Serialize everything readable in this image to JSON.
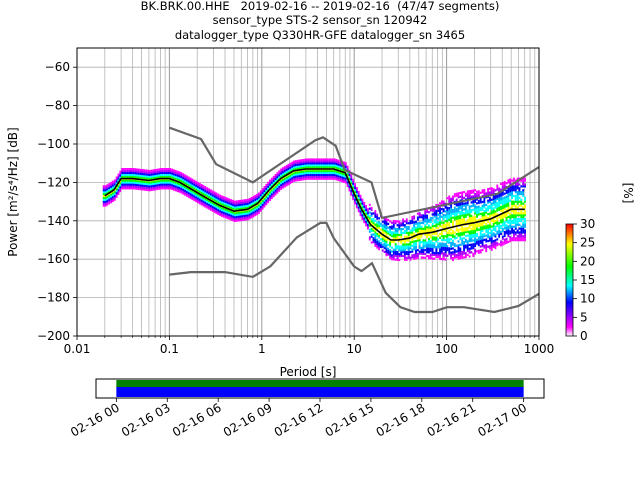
{
  "title_lines": [
    "BK.BRK.00.HHE   2019-02-16 -- 2019-02-16  (47/47 segments)",
    "sensor_type STS-2 sensor_sn 120942",
    "datalogger_type Q330HR-GFE datalogger_sn 3465"
  ],
  "chart_data": {
    "type": "heatmap",
    "xlabel": "Period [s]",
    "ylabel": "Power [m²/s⁴/Hz] [dB]",
    "xscale": "log",
    "xlim": [
      0.01,
      1000
    ],
    "ylim": [
      -200,
      -50
    ],
    "x_ticks": [
      0.01,
      0.1,
      1,
      10,
      100,
      1000
    ],
    "x_tick_labels": [
      "0.01",
      "0.1",
      "1",
      "10",
      "100",
      "1000"
    ],
    "y_ticks": [
      -200,
      -180,
      -160,
      -140,
      -120,
      -100,
      -80,
      -60
    ],
    "y_tick_labels": [
      "−200",
      "−180",
      "−160",
      "−140",
      "−120",
      "−100",
      "−80",
      "−60"
    ],
    "grid": true,
    "noise_model_color": "#666666",
    "mode_color": "#000000",
    "high_noise_model": {
      "period": [
        0.1,
        0.22,
        0.32,
        0.8,
        3.8,
        4.6,
        6.3,
        7.9,
        15.4,
        20,
        354.8,
        1000
      ],
      "db": [
        -91.5,
        -97.4,
        -110.5,
        -120,
        -98,
        -96.5,
        -101,
        -113.5,
        -120,
        -138.5,
        -126,
        -112
      ]
    },
    "low_noise_model": {
      "period": [
        0.1,
        0.17,
        0.4,
        0.8,
        1.24,
        2.4,
        4.3,
        5,
        6,
        10,
        12,
        15.6,
        21.9,
        31.6,
        45,
        70,
        101,
        154,
        328,
        600,
        1000
      ],
      "db": [
        -168,
        -166.7,
        -166.7,
        -169.2,
        -163.7,
        -148.6,
        -141.1,
        -141.1,
        -149,
        -163.8,
        -166.2,
        -162.1,
        -177.5,
        -185,
        -187.5,
        -187.5,
        -185,
        -185,
        -187.5,
        -184.4,
        -178
      ]
    },
    "mode_curve": {
      "period": [
        0.02,
        0.025,
        0.03,
        0.04,
        0.06,
        0.08,
        0.1,
        0.13,
        0.18,
        0.25,
        0.35,
        0.5,
        0.7,
        0.9,
        1.2,
        1.6,
        2.2,
        3,
        4,
        6,
        8,
        10,
        12,
        15,
        20,
        25,
        30,
        40,
        50,
        70,
        100,
        150,
        200,
        300,
        500,
        700
      ],
      "db": [
        -127,
        -124,
        -118,
        -118,
        -119,
        -118,
        -118,
        -120,
        -124,
        -128,
        -132,
        -135,
        -134,
        -131,
        -124,
        -118,
        -114,
        -113,
        -113,
        -113,
        -115,
        -126,
        -134,
        -142,
        -147,
        -150,
        -150,
        -149,
        -147,
        -146,
        -144,
        -142,
        -141,
        -139,
        -134,
        -134
      ]
    },
    "colorbar": {
      "label": "[%]",
      "min": 0,
      "max": 30,
      "ticks": [
        0,
        5,
        10,
        15,
        20,
        25,
        30
      ],
      "tick_labels": [
        "0",
        "5",
        "10",
        "15",
        "20",
        "25",
        "30"
      ],
      "colors": [
        "#ffffff",
        "#ff00ff",
        "#0000ff",
        "#00ffff",
        "#00ff00",
        "#ffff00",
        "#ff0000"
      ]
    },
    "coverage": {
      "tick_labels": [
        "02-16 00",
        "02-16 03",
        "02-16 06",
        "02-16 09",
        "02-16 12",
        "02-16 15",
        "02-16 18",
        "02-16 21",
        "02-17 00"
      ],
      "tick_hours": [
        0,
        3,
        6,
        9,
        12,
        15,
        18,
        21,
        24
      ],
      "hour_range": [
        -1.2,
        25.2
      ],
      "covered_hours": [
        0,
        24
      ],
      "colors": [
        "#008000",
        "#0000ff"
      ]
    }
  }
}
